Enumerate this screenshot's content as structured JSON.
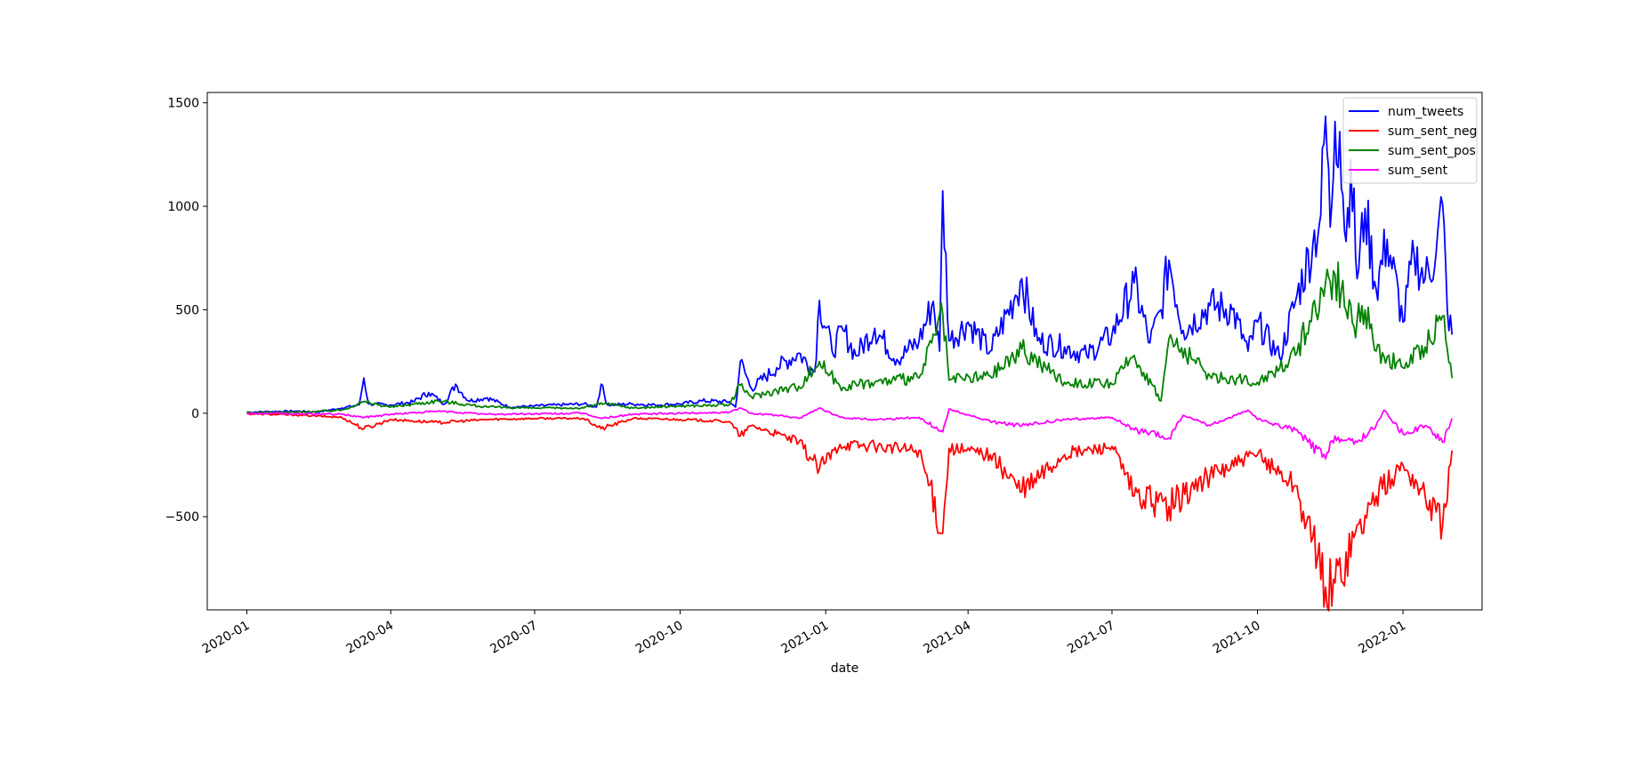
{
  "chart_data": {
    "type": "line",
    "title": "",
    "xlabel": "date",
    "ylabel": "",
    "xlim": [
      "2019-12-07",
      "2022-02-20"
    ],
    "ylim": [
      -950,
      1550
    ],
    "xticks": [
      "2020-01",
      "2020-04",
      "2020-07",
      "2020-10",
      "2021-01",
      "2021-04",
      "2021-07",
      "2021-10",
      "2022-01"
    ],
    "yticks": [
      -500,
      0,
      500,
      1000,
      1500
    ],
    "ytick_labels": [
      "−500",
      "0",
      "500",
      "1000",
      "1500"
    ],
    "grid": false,
    "legend": "top-right",
    "series": [
      {
        "name": "num_tweets",
        "color": "#0000ff",
        "points": [
          [
            "2020-01-01",
            5
          ],
          [
            "2020-01-15",
            8
          ],
          [
            "2020-02-01",
            10
          ],
          [
            "2020-02-15",
            6
          ],
          [
            "2020-03-01",
            25
          ],
          [
            "2020-03-12",
            40
          ],
          [
            "2020-03-15",
            170
          ],
          [
            "2020-03-18",
            45
          ],
          [
            "2020-04-01",
            40
          ],
          [
            "2020-04-15",
            55
          ],
          [
            "2020-04-25",
            100
          ],
          [
            "2020-05-05",
            45
          ],
          [
            "2020-05-12",
            140
          ],
          [
            "2020-05-20",
            60
          ],
          [
            "2020-06-01",
            75
          ],
          [
            "2020-06-15",
            30
          ],
          [
            "2020-07-01",
            35
          ],
          [
            "2020-07-15",
            40
          ],
          [
            "2020-08-01",
            45
          ],
          [
            "2020-08-09",
            30
          ],
          [
            "2020-08-12",
            140
          ],
          [
            "2020-08-16",
            40
          ],
          [
            "2020-09-01",
            45
          ],
          [
            "2020-09-15",
            40
          ],
          [
            "2020-10-01",
            45
          ],
          [
            "2020-10-15",
            60
          ],
          [
            "2020-11-01",
            55
          ],
          [
            "2020-11-05",
            30
          ],
          [
            "2020-11-08",
            250
          ],
          [
            "2020-11-15",
            120
          ],
          [
            "2020-12-01",
            220
          ],
          [
            "2020-12-15",
            290
          ],
          [
            "2020-12-25",
            200
          ],
          [
            "2020-12-28",
            545
          ],
          [
            "2021-01-05",
            300
          ],
          [
            "2021-01-12",
            400
          ],
          [
            "2021-01-20",
            280
          ],
          [
            "2021-02-01",
            410
          ],
          [
            "2021-02-15",
            260
          ],
          [
            "2021-03-01",
            350
          ],
          [
            "2021-03-10",
            540
          ],
          [
            "2021-03-14",
            300
          ],
          [
            "2021-03-16",
            1075
          ],
          [
            "2021-03-20",
            350
          ],
          [
            "2021-04-01",
            440
          ],
          [
            "2021-04-15",
            300
          ],
          [
            "2021-05-01",
            570
          ],
          [
            "2021-05-05",
            650
          ],
          [
            "2021-05-15",
            350
          ],
          [
            "2021-06-01",
            320
          ],
          [
            "2021-06-15",
            280
          ],
          [
            "2021-07-01",
            380
          ],
          [
            "2021-07-15",
            630
          ],
          [
            "2021-07-25",
            340
          ],
          [
            "2021-08-01",
            500
          ],
          [
            "2021-08-06",
            740
          ],
          [
            "2021-08-15",
            400
          ],
          [
            "2021-09-01",
            520
          ],
          [
            "2021-09-15",
            500
          ],
          [
            "2021-09-25",
            300
          ],
          [
            "2021-10-01",
            440
          ],
          [
            "2021-10-15",
            270
          ],
          [
            "2021-10-25",
            540
          ],
          [
            "2021-11-05",
            820
          ],
          [
            "2021-11-10",
            960
          ],
          [
            "2021-11-13",
            1435
          ],
          [
            "2021-11-16",
            900
          ],
          [
            "2021-11-19",
            1410
          ],
          [
            "2021-11-22",
            1360
          ],
          [
            "2021-11-26",
            830
          ],
          [
            "2021-11-29",
            1225
          ],
          [
            "2021-12-03",
            650
          ],
          [
            "2021-12-08",
            990
          ],
          [
            "2021-12-15",
            600
          ],
          [
            "2021-12-22",
            840
          ],
          [
            "2022-01-01",
            440
          ],
          [
            "2022-01-08",
            770
          ],
          [
            "2022-01-15",
            650
          ],
          [
            "2022-01-22",
            780
          ],
          [
            "2022-01-26",
            1010
          ],
          [
            "2022-01-29",
            500
          ],
          [
            "2022-02-01",
            380
          ]
        ]
      },
      {
        "name": "sum_sent_neg",
        "color": "#ff0000",
        "points": [
          [
            "2020-01-01",
            -3
          ],
          [
            "2020-02-01",
            -8
          ],
          [
            "2020-03-01",
            -20
          ],
          [
            "2020-03-15",
            -75
          ],
          [
            "2020-04-01",
            -30
          ],
          [
            "2020-05-01",
            -45
          ],
          [
            "2020-06-01",
            -30
          ],
          [
            "2020-07-01",
            -25
          ],
          [
            "2020-08-01",
            -25
          ],
          [
            "2020-08-12",
            -75
          ],
          [
            "2020-09-01",
            -25
          ],
          [
            "2020-10-01",
            -30
          ],
          [
            "2020-11-01",
            -40
          ],
          [
            "2020-11-08",
            -110
          ],
          [
            "2020-11-15",
            -60
          ],
          [
            "2020-12-01",
            -100
          ],
          [
            "2020-12-15",
            -140
          ],
          [
            "2020-12-28",
            -270
          ],
          [
            "2021-01-10",
            -150
          ],
          [
            "2021-02-01",
            -160
          ],
          [
            "2021-03-01",
            -180
          ],
          [
            "2021-03-16",
            -580
          ],
          [
            "2021-03-20",
            -170
          ],
          [
            "2021-04-15",
            -200
          ],
          [
            "2021-05-05",
            -380
          ],
          [
            "2021-06-01",
            -200
          ],
          [
            "2021-07-01",
            -160
          ],
          [
            "2021-07-15",
            -400
          ],
          [
            "2021-08-06",
            -450
          ],
          [
            "2021-09-01",
            -300
          ],
          [
            "2021-10-01",
            -200
          ],
          [
            "2021-10-25",
            -350
          ],
          [
            "2021-11-13",
            -840
          ],
          [
            "2021-11-19",
            -820
          ],
          [
            "2021-12-01",
            -600
          ],
          [
            "2021-12-15",
            -400
          ],
          [
            "2022-01-01",
            -250
          ],
          [
            "2022-01-15",
            -400
          ],
          [
            "2022-01-26",
            -540
          ],
          [
            "2022-02-01",
            -180
          ]
        ]
      },
      {
        "name": "sum_sent_pos",
        "color": "#008000",
        "points": [
          [
            "2020-01-01",
            3
          ],
          [
            "2020-02-01",
            5
          ],
          [
            "2020-03-01",
            15
          ],
          [
            "2020-03-15",
            55
          ],
          [
            "2020-04-01",
            30
          ],
          [
            "2020-05-01",
            60
          ],
          [
            "2020-06-01",
            30
          ],
          [
            "2020-07-01",
            25
          ],
          [
            "2020-08-01",
            25
          ],
          [
            "2020-08-12",
            50
          ],
          [
            "2020-09-01",
            25
          ],
          [
            "2020-10-01",
            35
          ],
          [
            "2020-11-01",
            40
          ],
          [
            "2020-11-08",
            135
          ],
          [
            "2020-11-15",
            80
          ],
          [
            "2020-12-01",
            110
          ],
          [
            "2020-12-15",
            130
          ],
          [
            "2020-12-28",
            250
          ],
          [
            "2021-01-10",
            130
          ],
          [
            "2021-02-01",
            150
          ],
          [
            "2021-03-01",
            170
          ],
          [
            "2021-03-16",
            480
          ],
          [
            "2021-03-20",
            160
          ],
          [
            "2021-04-15",
            180
          ],
          [
            "2021-05-05",
            310
          ],
          [
            "2021-06-01",
            150
          ],
          [
            "2021-07-01",
            140
          ],
          [
            "2021-07-15",
            280
          ],
          [
            "2021-08-01",
            60
          ],
          [
            "2021-08-06",
            360
          ],
          [
            "2021-09-01",
            180
          ],
          [
            "2021-10-01",
            150
          ],
          [
            "2021-10-25",
            280
          ],
          [
            "2021-11-13",
            630
          ],
          [
            "2021-11-19",
            670
          ],
          [
            "2021-12-01",
            420
          ],
          [
            "2021-12-08",
            500
          ],
          [
            "2021-12-15",
            300
          ],
          [
            "2022-01-01",
            220
          ],
          [
            "2022-01-15",
            320
          ],
          [
            "2022-01-26",
            470
          ],
          [
            "2022-02-01",
            170
          ]
        ]
      },
      {
        "name": "sum_sent",
        "color": "#ff00ff",
        "points": [
          [
            "2020-01-01",
            0
          ],
          [
            "2020-02-01",
            -3
          ],
          [
            "2020-03-01",
            -5
          ],
          [
            "2020-03-15",
            -20
          ],
          [
            "2020-04-01",
            -5
          ],
          [
            "2020-05-01",
            10
          ],
          [
            "2020-06-01",
            -5
          ],
          [
            "2020-07-01",
            -3
          ],
          [
            "2020-08-01",
            0
          ],
          [
            "2020-08-12",
            -25
          ],
          [
            "2020-09-01",
            -5
          ],
          [
            "2020-10-01",
            0
          ],
          [
            "2020-11-01",
            5
          ],
          [
            "2020-11-08",
            25
          ],
          [
            "2020-11-15",
            0
          ],
          [
            "2020-12-01",
            -10
          ],
          [
            "2020-12-15",
            -25
          ],
          [
            "2020-12-28",
            25
          ],
          [
            "2021-01-10",
            -20
          ],
          [
            "2021-02-01",
            -30
          ],
          [
            "2021-03-01",
            -20
          ],
          [
            "2021-03-16",
            -90
          ],
          [
            "2021-03-20",
            20
          ],
          [
            "2021-04-15",
            -40
          ],
          [
            "2021-05-05",
            -60
          ],
          [
            "2021-06-01",
            -30
          ],
          [
            "2021-07-01",
            -20
          ],
          [
            "2021-07-15",
            -80
          ],
          [
            "2021-08-06",
            -120
          ],
          [
            "2021-08-15",
            -10
          ],
          [
            "2021-09-01",
            -60
          ],
          [
            "2021-09-25",
            15
          ],
          [
            "2021-10-01",
            -30
          ],
          [
            "2021-10-25",
            -80
          ],
          [
            "2021-11-13",
            -220
          ],
          [
            "2021-11-19",
            -110
          ],
          [
            "2021-12-01",
            -150
          ],
          [
            "2021-12-15",
            -60
          ],
          [
            "2021-12-20",
            15
          ],
          [
            "2022-01-01",
            -100
          ],
          [
            "2022-01-15",
            -60
          ],
          [
            "2022-01-26",
            -140
          ],
          [
            "2022-02-01",
            -25
          ]
        ]
      }
    ]
  }
}
